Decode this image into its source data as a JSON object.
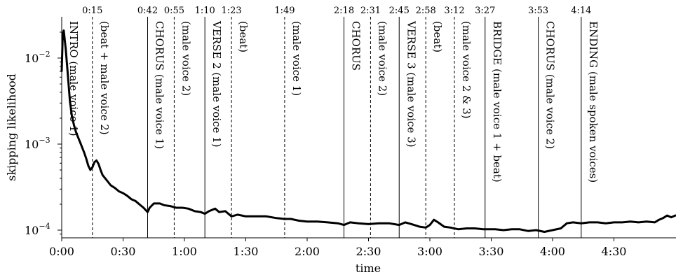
{
  "chart_data": {
    "type": "line",
    "title": "",
    "xlabel": "time",
    "ylabel": "skipping likelihood",
    "yscale": "log",
    "ylim_log10": [
      -4.15,
      -1.45
    ],
    "xlim_seconds": [
      0,
      300
    ],
    "x_ticks": [
      {
        "value": 0,
        "label": "0:00"
      },
      {
        "value": 30,
        "label": "0:30"
      },
      {
        "value": 60,
        "label": "1:00"
      },
      {
        "value": 90,
        "label": "1:30"
      },
      {
        "value": 120,
        "label": "2:00"
      },
      {
        "value": 150,
        "label": "2:30"
      },
      {
        "value": 180,
        "label": "3:00"
      },
      {
        "value": 210,
        "label": "3:30"
      },
      {
        "value": 240,
        "label": "4:00"
      },
      {
        "value": 270,
        "label": "4:30"
      }
    ],
    "y_ticks": [
      {
        "exp": -4,
        "label": "10",
        "sup": "−4"
      },
      {
        "exp": -3,
        "label": "10",
        "sup": "−3"
      },
      {
        "exp": -2,
        "label": "10",
        "sup": "−2"
      }
    ],
    "markers": [
      {
        "t": 0,
        "time_label": "",
        "style": "solid",
        "label": "INTRO  (male voice 1)"
      },
      {
        "t": 15,
        "time_label": "0:15",
        "style": "dashed",
        "label": "(beat + male voice 2)"
      },
      {
        "t": 42,
        "time_label": "0:42",
        "style": "solid",
        "label": "CHORUS  (male voice 1)"
      },
      {
        "t": 55,
        "time_label": "0:55",
        "style": "dashed",
        "label": "(male voice 2)"
      },
      {
        "t": 70,
        "time_label": "1:10",
        "style": "solid",
        "label": "VERSE 2  (male voice 1)"
      },
      {
        "t": 83,
        "time_label": "1:23",
        "style": "dashed",
        "label": "(beat)"
      },
      {
        "t": 109,
        "time_label": "1:49",
        "style": "dashed",
        "label": "(male voice 1)"
      },
      {
        "t": 138,
        "time_label": "2:18",
        "style": "solid",
        "label": "CHORUS"
      },
      {
        "t": 151,
        "time_label": "2:31",
        "style": "dashed",
        "label": "(male voice 2)"
      },
      {
        "t": 165,
        "time_label": "2:45",
        "style": "solid",
        "label": "VERSE 3  (male voice 3)"
      },
      {
        "t": 178,
        "time_label": "2:58",
        "style": "dashed",
        "label": "(beat)"
      },
      {
        "t": 192,
        "time_label": "3:12",
        "style": "dashed",
        "label": "(male voice 2 & 3)"
      },
      {
        "t": 207,
        "time_label": "3:27",
        "style": "solid",
        "label": "BRIDGE  (male voice 1 + beat)"
      },
      {
        "t": 233,
        "time_label": "3:53",
        "style": "solid",
        "label": "CHORUS  (male voice 2)"
      },
      {
        "t": 254,
        "time_label": "4:14",
        "style": "solid",
        "label": "ENDING  (male spoken voices)"
      }
    ],
    "series": [
      {
        "points": [
          [
            0,
            -2.15
          ],
          [
            0.5,
            -1.72
          ],
          [
            1,
            -1.68
          ],
          [
            2,
            -1.9
          ],
          [
            3,
            -2.2
          ],
          [
            4,
            -2.5
          ],
          [
            5,
            -2.68
          ],
          [
            6,
            -2.78
          ],
          [
            7,
            -2.86
          ],
          [
            8,
            -2.92
          ],
          [
            9,
            -2.98
          ],
          [
            10,
            -3.04
          ],
          [
            11,
            -3.1
          ],
          [
            12,
            -3.17
          ],
          [
            13,
            -3.25
          ],
          [
            14,
            -3.3
          ],
          [
            15,
            -3.27
          ],
          [
            16,
            -3.21
          ],
          [
            17,
            -3.19
          ],
          [
            18,
            -3.23
          ],
          [
            19,
            -3.3
          ],
          [
            20,
            -3.36
          ],
          [
            22,
            -3.42
          ],
          [
            24,
            -3.48
          ],
          [
            26,
            -3.51
          ],
          [
            28,
            -3.55
          ],
          [
            30,
            -3.57
          ],
          [
            32,
            -3.6
          ],
          [
            34,
            -3.64
          ],
          [
            36,
            -3.66
          ],
          [
            38,
            -3.7
          ],
          [
            40,
            -3.74
          ],
          [
            42,
            -3.79
          ],
          [
            43,
            -3.74
          ],
          [
            45,
            -3.69
          ],
          [
            48,
            -3.69
          ],
          [
            50,
            -3.71
          ],
          [
            53,
            -3.72
          ],
          [
            56,
            -3.74
          ],
          [
            59,
            -3.74
          ],
          [
            62,
            -3.75
          ],
          [
            65,
            -3.78
          ],
          [
            68,
            -3.79
          ],
          [
            70,
            -3.81
          ],
          [
            72,
            -3.78
          ],
          [
            75,
            -3.75
          ],
          [
            77,
            -3.79
          ],
          [
            80,
            -3.78
          ],
          [
            83,
            -3.84
          ],
          [
            86,
            -3.82
          ],
          [
            90,
            -3.84
          ],
          [
            95,
            -3.84
          ],
          [
            100,
            -3.84
          ],
          [
            105,
            -3.86
          ],
          [
            109,
            -3.87
          ],
          [
            112,
            -3.87
          ],
          [
            116,
            -3.89
          ],
          [
            120,
            -3.9
          ],
          [
            125,
            -3.9
          ],
          [
            130,
            -3.91
          ],
          [
            135,
            -3.92
          ],
          [
            138,
            -3.94
          ],
          [
            141,
            -3.91
          ],
          [
            145,
            -3.92
          ],
          [
            150,
            -3.93
          ],
          [
            155,
            -3.92
          ],
          [
            160,
            -3.92
          ],
          [
            165,
            -3.94
          ],
          [
            168,
            -3.91
          ],
          [
            171,
            -3.93
          ],
          [
            175,
            -3.96
          ],
          [
            178,
            -3.97
          ],
          [
            180,
            -3.94
          ],
          [
            182,
            -3.88
          ],
          [
            184,
            -3.91
          ],
          [
            187,
            -3.96
          ],
          [
            190,
            -3.97
          ],
          [
            194,
            -3.99
          ],
          [
            198,
            -3.98
          ],
          [
            202,
            -3.98
          ],
          [
            206,
            -3.99
          ],
          [
            208,
            -3.99
          ],
          [
            212,
            -3.99
          ],
          [
            216,
            -4.0
          ],
          [
            220,
            -3.99
          ],
          [
            224,
            -3.99
          ],
          [
            228,
            -4.01
          ],
          [
            232,
            -4.0
          ],
          [
            236,
            -4.02
          ],
          [
            240,
            -4.0
          ],
          [
            244,
            -3.98
          ],
          [
            247,
            -3.92
          ],
          [
            250,
            -3.91
          ],
          [
            254,
            -3.92
          ],
          [
            258,
            -3.91
          ],
          [
            262,
            -3.91
          ],
          [
            266,
            -3.92
          ],
          [
            270,
            -3.91
          ],
          [
            274,
            -3.91
          ],
          [
            278,
            -3.9
          ],
          [
            282,
            -3.91
          ],
          [
            286,
            -3.9
          ],
          [
            290,
            -3.91
          ],
          [
            292,
            -3.88
          ],
          [
            294,
            -3.86
          ],
          [
            296,
            -3.83
          ],
          [
            298,
            -3.85
          ],
          [
            300,
            -3.83
          ]
        ]
      }
    ]
  }
}
